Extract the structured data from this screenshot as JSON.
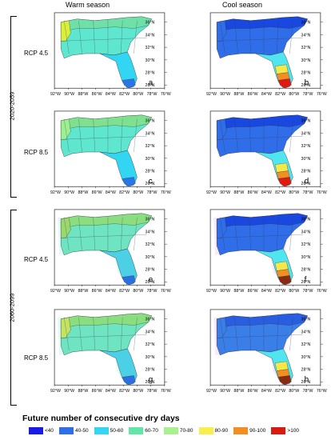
{
  "headers": {
    "warm": "Warm season",
    "cool": "Cool season"
  },
  "periods": [
    {
      "label": "2020-2059"
    },
    {
      "label": "2060-2099"
    }
  ],
  "rows": [
    {
      "rcp": "RCP 4.5",
      "period": "2020-2059"
    },
    {
      "rcp": "RCP 8.5",
      "period": "2020-2059"
    },
    {
      "rcp": "RCP 4.5",
      "period": "2060-2099"
    },
    {
      "rcp": "RCP 8.5",
      "period": "2060-2099"
    }
  ],
  "lat_labels": [
    "36°N",
    "34°N",
    "32°N",
    "30°N",
    "28°N",
    "26°N"
  ],
  "lon_labels": [
    "92°W",
    "90°W",
    "88°W",
    "86°W",
    "84°W",
    "82°W",
    "80°W",
    "78°W",
    "76°W"
  ],
  "panels": [
    {
      "id": "a",
      "season": "warm",
      "row": 0,
      "fill": "#5fe6cf",
      "north": "#6fe0a8",
      "florida": "#33d6f2",
      "tip": "#2a76e6",
      "west": "#d9ef3a"
    },
    {
      "id": "b",
      "season": "cool",
      "row": 0,
      "fill": "#2f6ee8",
      "north": "#1848e0",
      "florida": "#4fe6f0",
      "tip": "#e01a10",
      "mid": "#f7e84a",
      "low": "#f38f22"
    },
    {
      "id": "c",
      "season": "warm",
      "row": 1,
      "fill": "#5fe6cf",
      "north": "#7fe08f",
      "florida": "#33d6f2",
      "tip": "#2a76e6",
      "west": "#9cf090"
    },
    {
      "id": "d",
      "season": "cool",
      "row": 1,
      "fill": "#2f6ee8",
      "north": "#1848e0",
      "florida": "#4fe6f0",
      "tip": "#e01a10",
      "mid": "#f7e84a",
      "low": "#f38f22"
    },
    {
      "id": "e",
      "season": "warm",
      "row": 2,
      "fill": "#6fe4c0",
      "north": "#8ade7f",
      "florida": "#4bd0e6",
      "tip": "#2a70e0",
      "west": "#9ad86d"
    },
    {
      "id": "f",
      "season": "cool",
      "row": 2,
      "fill": "#2f6ee8",
      "north": "#1848e0",
      "florida": "#4fe6f0",
      "tip": "#8a2a10",
      "mid": "#f7e84a",
      "low": "#f38f22"
    },
    {
      "id": "g",
      "season": "warm",
      "row": 3,
      "fill": "#6fe4c0",
      "north": "#8ade7f",
      "florida": "#4bd0e6",
      "tip": "#2a70e0",
      "west": "#c3e460"
    },
    {
      "id": "h",
      "season": "cool",
      "row": 3,
      "fill": "#3a7ee8",
      "north": "#2a5ee0",
      "florida": "#4fe6f0",
      "tip": "#8a2a10",
      "mid": "#f7e84a",
      "low": "#f38f22"
    }
  ],
  "legend": {
    "title": "Future number of consecutive dry days",
    "items": [
      {
        "label": "<40",
        "color": "#1a1ae6"
      },
      {
        "label": "40-50",
        "color": "#2e6fe8"
      },
      {
        "label": "50-60",
        "color": "#33d6f2"
      },
      {
        "label": "60-70",
        "color": "#5fe6a8"
      },
      {
        "label": "70-80",
        "color": "#a8f090"
      },
      {
        "label": "80-90",
        "color": "#f7f04a"
      },
      {
        "label": "90-100",
        "color": "#f38f22"
      },
      {
        "label": ">100",
        "color": "#d81a10"
      }
    ]
  }
}
